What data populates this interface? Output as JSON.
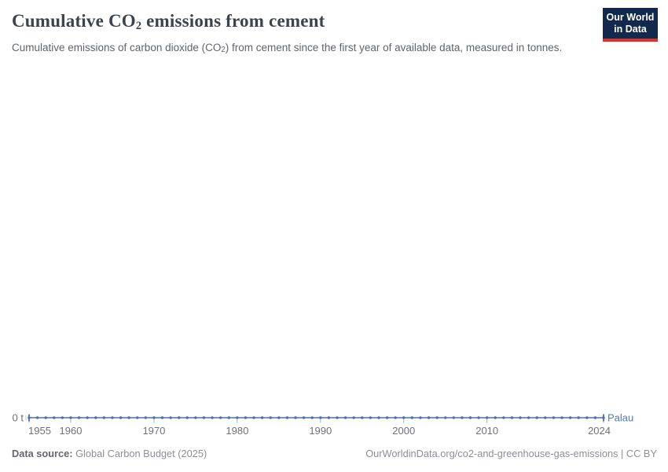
{
  "header": {
    "title_prefix": "Cumulative CO",
    "title_sub": "2",
    "title_suffix": " emissions from cement",
    "subtitle_prefix": "Cumulative emissions of carbon dioxide (CO",
    "subtitle_sub": "2",
    "subtitle_suffix": ") from cement since the first year of available data, measured in tonnes.",
    "logo": {
      "line1": "Our World",
      "line2": "in Data"
    }
  },
  "chart_data": {
    "type": "line",
    "title": "Cumulative CO₂ emissions from cement",
    "unit": "t",
    "xlabel": "",
    "ylabel": "",
    "y_zero_label": "0 t",
    "x_range": [
      1955,
      2024
    ],
    "ylim": [
      0,
      0
    ],
    "grid": false,
    "legend_position": "end-of-line",
    "x_ticks": [
      1955,
      1960,
      1970,
      1980,
      1990,
      2000,
      2010,
      2024
    ],
    "series": [
      {
        "name": "Palau",
        "years": [
          1955,
          1956,
          1957,
          1958,
          1959,
          1960,
          1961,
          1962,
          1963,
          1964,
          1965,
          1966,
          1967,
          1968,
          1969,
          1970,
          1971,
          1972,
          1973,
          1974,
          1975,
          1976,
          1977,
          1978,
          1979,
          1980,
          1981,
          1982,
          1983,
          1984,
          1985,
          1986,
          1987,
          1988,
          1989,
          1990,
          1991,
          1992,
          1993,
          1994,
          1995,
          1996,
          1997,
          1998,
          1999,
          2000,
          2001,
          2002,
          2003,
          2004,
          2005,
          2006,
          2007,
          2008,
          2009,
          2010,
          2011,
          2012,
          2013,
          2014,
          2015,
          2016,
          2017,
          2018,
          2019,
          2020,
          2021,
          2022,
          2023,
          2024
        ],
        "values": [
          0,
          0,
          0,
          0,
          0,
          0,
          0,
          0,
          0,
          0,
          0,
          0,
          0,
          0,
          0,
          0,
          0,
          0,
          0,
          0,
          0,
          0,
          0,
          0,
          0,
          0,
          0,
          0,
          0,
          0,
          0,
          0,
          0,
          0,
          0,
          0,
          0,
          0,
          0,
          0,
          0,
          0,
          0,
          0,
          0,
          0,
          0,
          0,
          0,
          0,
          0,
          0,
          0,
          0,
          0,
          0,
          0,
          0,
          0,
          0,
          0,
          0,
          0,
          0,
          0,
          0,
          0,
          0,
          0,
          0
        ]
      }
    ]
  },
  "colors": {
    "series": "#4d70ab",
    "series_label": "#5579b4",
    "axis_text": "#6e7179",
    "tick_mark": "#a5aeb8",
    "minor_tick": "#c6cdd6"
  },
  "footer": {
    "source_label": "Data source:",
    "source_value": "Global Carbon Budget (2025)",
    "attribution": "OurWorldinData.org/co2-and-greenhouse-gas-emissions | CC BY"
  }
}
